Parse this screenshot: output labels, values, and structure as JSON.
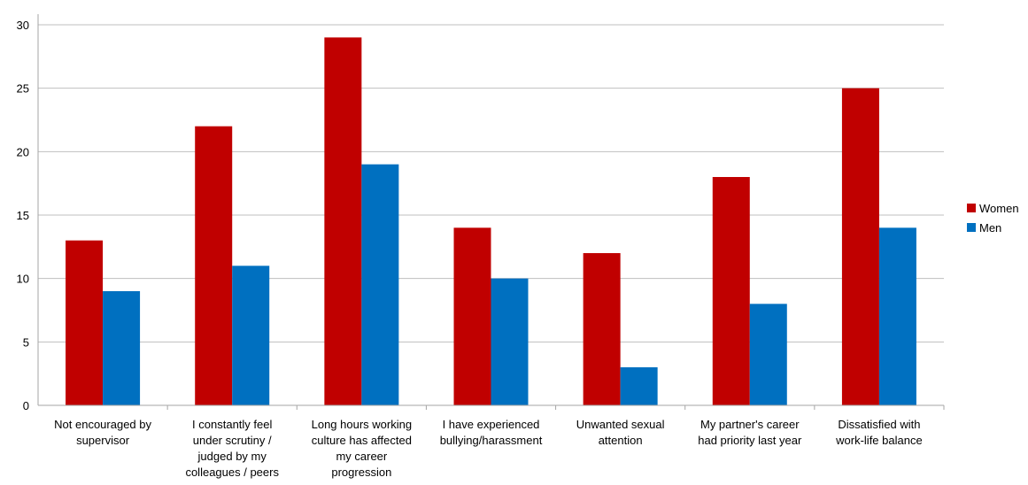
{
  "chart_data": {
    "type": "bar",
    "title": "",
    "xlabel": "",
    "ylabel": "",
    "ylim": [
      0,
      30
    ],
    "yticks": [
      0,
      5,
      10,
      15,
      20,
      25,
      30
    ],
    "grid": true,
    "legend_position": "right",
    "categories": [
      [
        "Not encouraged by",
        "supervisor"
      ],
      [
        "I constantly feel",
        "under scrutiny /",
        "judged by my",
        "colleagues / peers"
      ],
      [
        "Long hours working",
        "culture has affected",
        "my career",
        "progression"
      ],
      [
        "I have experienced",
        "bullying/harassment"
      ],
      [
        "Unwanted sexual",
        "attention"
      ],
      [
        "My partner's career",
        "had priority last year"
      ],
      [
        "Dissatisfied with",
        "work-life balance"
      ]
    ],
    "series": [
      {
        "name": "Women",
        "color": "#C00000",
        "values": [
          13,
          22,
          29,
          14,
          12,
          18,
          25
        ]
      },
      {
        "name": "Men",
        "color": "#0070C0",
        "values": [
          9,
          11,
          19,
          10,
          3,
          8,
          14
        ]
      }
    ]
  }
}
